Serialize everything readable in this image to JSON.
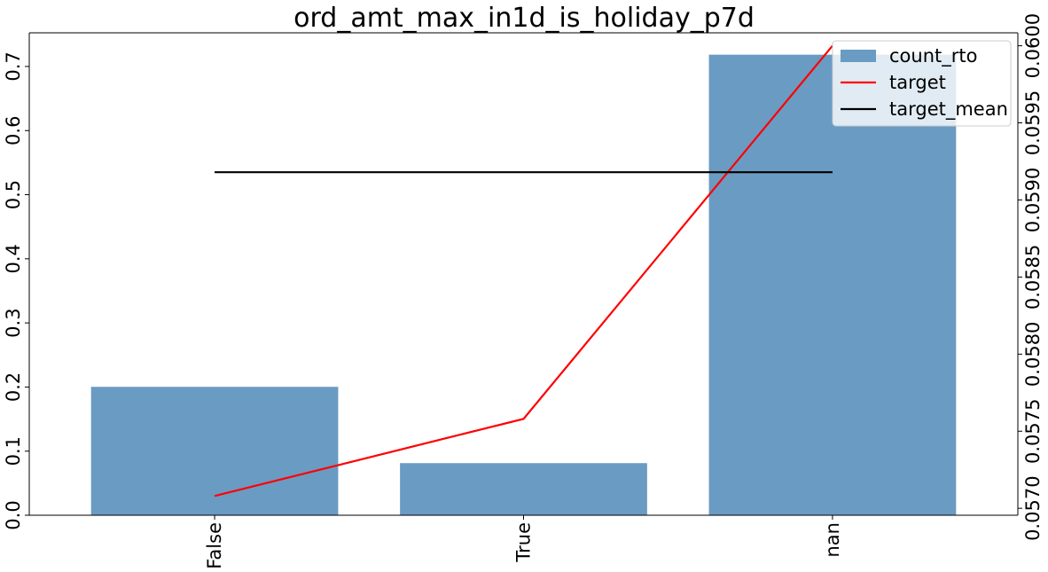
{
  "chart_data": {
    "type": "bar",
    "title": "ord_amt_max_in1d_is_holiday_p7d",
    "xlabel": "",
    "ylabel": "",
    "categories": [
      "False",
      "True",
      "nan"
    ],
    "series": [
      {
        "name": "count_rto",
        "type": "bar",
        "axis": "left",
        "color": "#6a9bc3",
        "values": [
          0.2003,
          0.0813,
          0.7184
        ]
      },
      {
        "name": "target",
        "type": "line",
        "axis": "right",
        "color": "#ff0000",
        "values": [
          0.05708,
          0.05758,
          0.06
        ]
      },
      {
        "name": "target_mean",
        "type": "line",
        "axis": "right",
        "color": "#000000",
        "values": [
          0.05918,
          0.05918,
          0.05918
        ]
      }
    ],
    "ylim_left": [
      0,
      0.7525
    ],
    "yticks_left": [
      "0.0",
      "0.1",
      "0.2",
      "0.3",
      "0.4",
      "0.5",
      "0.6",
      "0.7"
    ],
    "ylim_right": [
      0.056955,
      0.060084
    ],
    "yticks_right": [
      "0.0570",
      "0.0575",
      "0.0580",
      "0.0585",
      "0.0590",
      "0.0595",
      "0.0600"
    ],
    "grid": false,
    "legend_position": "top-right"
  }
}
